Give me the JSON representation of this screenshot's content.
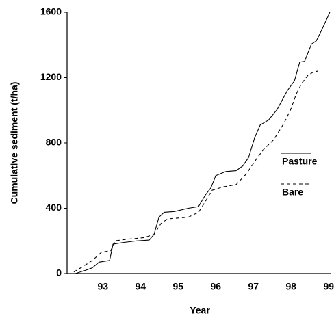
{
  "chart_data": {
    "type": "line",
    "x_label": "Year",
    "y_label": "Cumulative sediment (t/ha)",
    "xlim": [
      92.05,
      99.05
    ],
    "xticks": [
      93,
      94,
      95,
      96,
      97,
      98,
      99
    ],
    "ylim": [
      0,
      1600
    ],
    "yticks": [
      0,
      400,
      800,
      1200,
      1600
    ],
    "legend": "right",
    "series": [
      {
        "name": "Pasture",
        "color": "#000000",
        "dash": "solid",
        "x": [
          92.27,
          92.54,
          92.72,
          92.9,
          93.18,
          93.27,
          93.54,
          93.9,
          94.23,
          94.36,
          94.49,
          94.63,
          94.9,
          95.27,
          95.54,
          95.72,
          95.87,
          96.0,
          96.27,
          96.54,
          96.72,
          96.87,
          97.03,
          97.18,
          97.4,
          97.63,
          97.9,
          98.09,
          98.23,
          98.36,
          98.54,
          98.67,
          98.81,
          99.03
        ],
        "values": [
          0,
          20,
          35,
          70,
          80,
          180,
          190,
          200,
          205,
          240,
          345,
          375,
          380,
          400,
          410,
          480,
          525,
          600,
          625,
          630,
          660,
          710,
          830,
          910,
          940,
          1005,
          1120,
          1180,
          1295,
          1300,
          1405,
          1425,
          1490,
          1600
        ]
      },
      {
        "name": "Bare",
        "color": "#000000",
        "dash": "dashed",
        "x": [
          92.23,
          92.45,
          92.72,
          92.96,
          93.21,
          93.32,
          93.63,
          94.09,
          94.36,
          94.54,
          94.72,
          95.27,
          95.54,
          95.72,
          95.9,
          96.18,
          96.54,
          96.81,
          97.09,
          97.27,
          97.54,
          97.81,
          97.99,
          98.14,
          98.27,
          98.45,
          98.6,
          98.72
        ],
        "values": [
          10,
          40,
          80,
          130,
          140,
          200,
          210,
          220,
          240,
          305,
          335,
          345,
          375,
          440,
          510,
          530,
          545,
          610,
          705,
          760,
          820,
          920,
          1005,
          1100,
          1160,
          1215,
          1235,
          1240
        ]
      }
    ]
  }
}
